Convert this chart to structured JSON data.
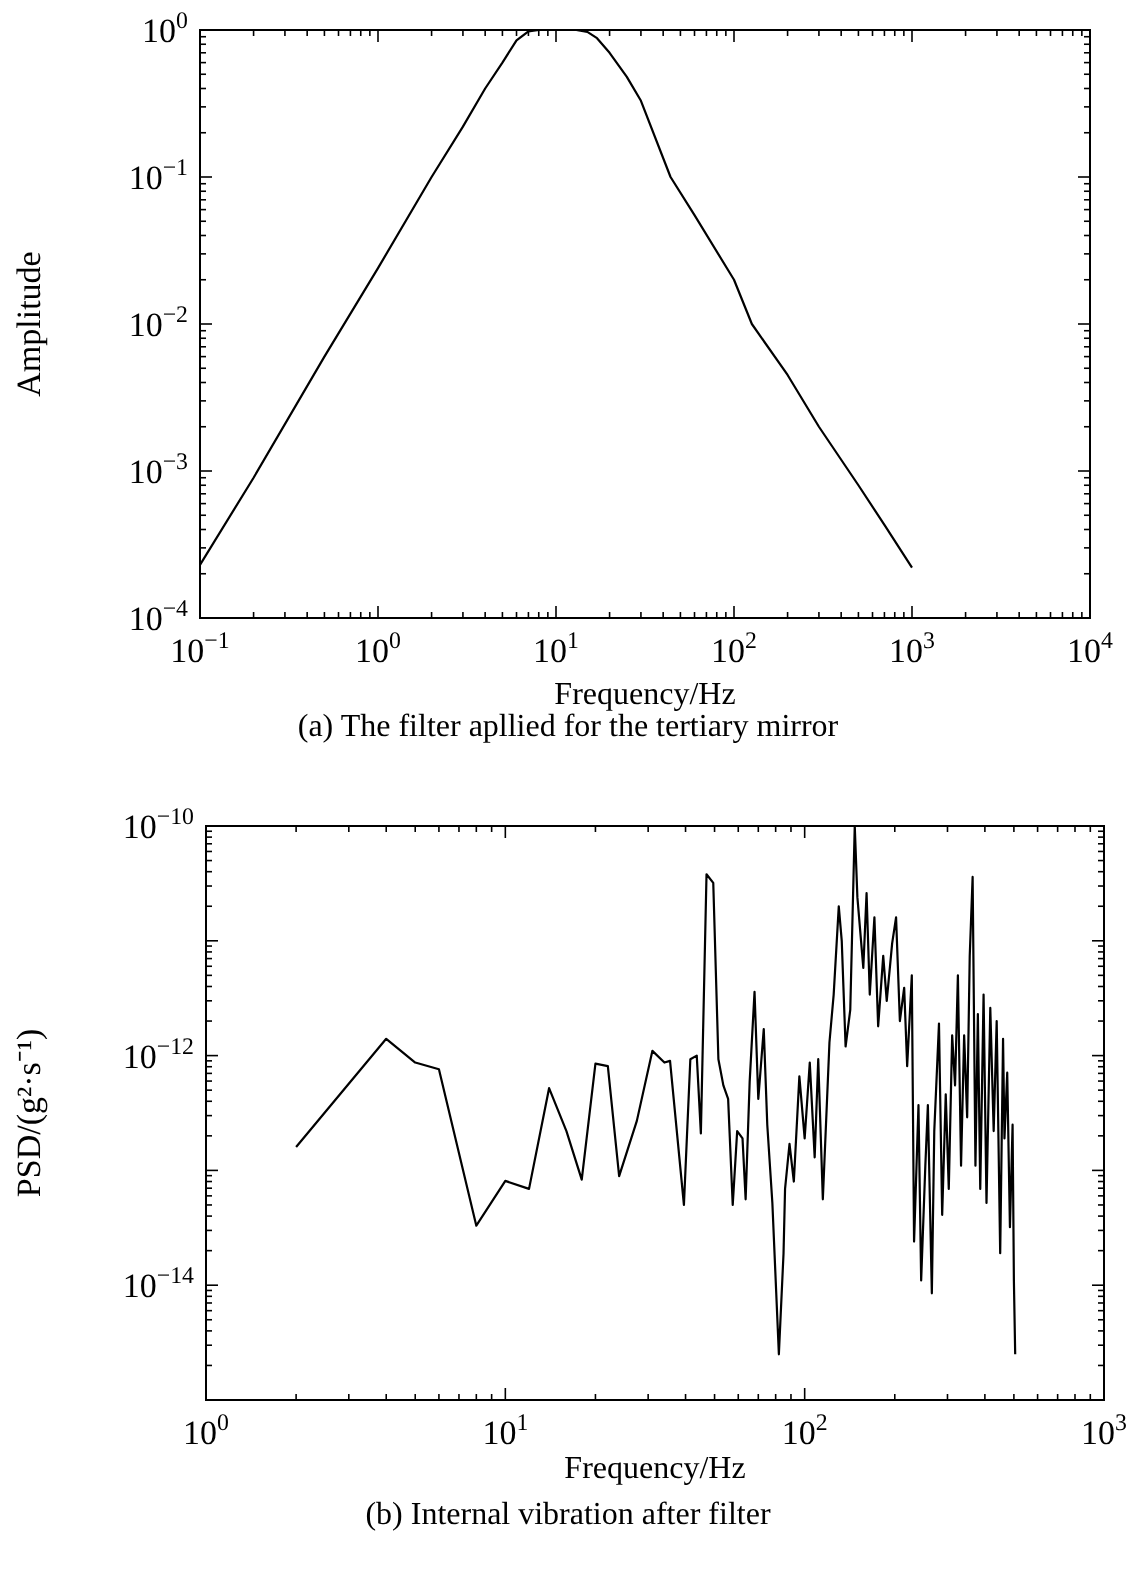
{
  "chart_data": [
    {
      "type": "line",
      "xlabel": "Frequency/Hz",
      "ylabel": "Amplitude",
      "log": "xy",
      "xlim": [
        0.1,
        10000
      ],
      "ylim": [
        0.0001,
        1
      ],
      "xticks": [
        {
          "value": 0.1,
          "label": "10$^{−1}$"
        },
        {
          "value": 1,
          "label": "10$^{0}$"
        },
        {
          "value": 10,
          "label": "10$^{1}$"
        },
        {
          "value": 100,
          "label": "10$^{2}$"
        },
        {
          "value": 1000,
          "label": "10$^{3}$"
        },
        {
          "value": 10000,
          "label": "10$^{4}$"
        }
      ],
      "yticks": [
        {
          "value": 0.0001,
          "label": "10$^{−4}$"
        },
        {
          "value": 0.001,
          "label": "10$^{−3}$"
        },
        {
          "value": 0.01,
          "label": "10$^{−2}$"
        },
        {
          "value": 0.1,
          "label": "10$^{−1}$"
        },
        {
          "value": 1,
          "label": "10$^{0}$"
        }
      ],
      "annotations": [
        "(a) The filter apllied for the tertiary mirror"
      ],
      "series": [
        {
          "color": "#000000",
          "x": [
            0.1,
            0.2,
            0.5,
            1,
            2,
            3,
            4,
            5,
            6,
            7,
            8,
            10,
            13,
            15,
            17,
            20,
            25,
            30,
            44,
            60,
            100,
            126,
            200,
            300,
            500,
            700,
            1000
          ],
          "values": [
            0.00023,
            0.0009,
            0.006,
            0.024,
            0.1,
            0.22,
            0.4,
            0.6,
            0.85,
            0.98,
            1,
            1,
            1,
            0.97,
            0.88,
            0.7,
            0.48,
            0.33,
            0.1,
            0.055,
            0.02,
            0.01,
            0.0045,
            0.002,
            0.0008,
            0.00043,
            0.00022
          ]
        }
      ]
    },
    {
      "type": "line",
      "xlabel": "Frequency/Hz",
      "ylabel": "PSD/(g²·s⁻¹)",
      "log": "xy",
      "xlim": [
        1,
        1000
      ],
      "ylim": [
        1e-15,
        1e-10
      ],
      "xticks": [
        {
          "value": 1,
          "label": "10$^{0}$"
        },
        {
          "value": 10,
          "label": "10$^{1}$"
        },
        {
          "value": 100,
          "label": "10$^{2}$"
        },
        {
          "value": 1000,
          "label": "10$^{3}$"
        }
      ],
      "yticks": [
        {
          "value": 1e-15,
          "label": null
        },
        {
          "value": 1e-14,
          "label": "10$^{−14}$"
        },
        {
          "value": 1e-13,
          "label": null
        },
        {
          "value": 1e-12,
          "label": "10$^{−12}$"
        },
        {
          "value": 1e-11,
          "label": null
        },
        {
          "value": 1e-10,
          "label": "10$^{−10}$"
        }
      ],
      "annotations": [
        "(b) Internal vibration after filter"
      ],
      "series": [
        {
          "color": "#000000",
          "x": [
            2,
            4,
            5,
            6,
            8,
            10,
            12,
            14,
            16,
            18,
            20,
            22,
            24,
            27.5,
            31,
            34,
            35.5,
            39.5,
            41.5,
            43.6,
            45,
            47,
            49.5,
            51.5,
            53.5,
            55.5,
            57.5,
            59.5,
            62,
            63.5,
            65.5,
            68,
            70,
            73,
            75,
            78,
            82,
            85,
            86,
            89,
            92,
            96,
            100,
            104,
            108,
            111,
            115,
            121,
            125,
            130,
            133,
            137,
            142,
            147,
            150,
            157,
            161,
            165,
            171,
            176,
            183,
            188,
            196,
            202,
            208,
            215,
            220,
            228,
            232,
            240,
            245,
            253,
            258,
            266,
            271,
            281,
            288,
            296,
            303,
            311,
            318,
            325,
            333,
            341,
            349,
            356,
            364,
            372,
            379,
            386,
            396,
            405,
            417,
            428,
            438,
            450,
            460,
            465,
            475,
            485,
            495,
            500,
            505
          ],
          "values": [
            1.6e-13,
            1.4e-12,
            8.7e-13,
            7.6e-13,
            3.3e-14,
            8.1e-14,
            6.9e-14,
            5.2e-13,
            2.2e-13,
            8.3e-14,
            8.5e-13,
            8.1e-13,
            8.9e-14,
            2.7e-13,
            1.1e-12,
            8.7e-13,
            9e-13,
            5e-14,
            9.3e-13,
            1e-12,
            2.1e-13,
            3.8e-11,
            3.2e-11,
            9.3e-13,
            5.5e-13,
            4.2e-13,
            5e-14,
            2.2e-13,
            1.9e-13,
            5.6e-14,
            5.9e-13,
            3.6e-12,
            4.2e-13,
            1.7e-12,
            2.5e-13,
            5.2e-14,
            2.5e-15,
            1.9e-14,
            6.9e-14,
            1.7e-13,
            8e-14,
            6.6e-13,
            1.9e-13,
            8.7e-13,
            1.3e-13,
            9.3e-13,
            5.6e-14,
            1.3e-12,
            3.4e-12,
            2e-11,
            1e-11,
            1.2e-12,
            2.5e-12,
            1e-10,
            2.4e-11,
            5.8e-12,
            2.6e-11,
            3.4e-12,
            1.6e-11,
            1.8e-12,
            7.4e-12,
            3e-12,
            9.5e-12,
            1.6e-11,
            2e-12,
            3.9e-12,
            8.1e-13,
            5e-12,
            2.4e-14,
            3.7e-13,
            1.1e-14,
            1.1e-13,
            3.7e-13,
            8.5e-15,
            2.2e-13,
            1.9e-12,
            4.1e-14,
            4.6e-13,
            6.9e-14,
            1.5e-12,
            5.5e-13,
            5e-12,
            1.1e-13,
            1.5e-12,
            2.9e-13,
            7.4e-12,
            3.6e-11,
            1.1e-13,
            2.3e-12,
            6.9e-14,
            3.4e-12,
            5.2e-14,
            2.6e-12,
            2.2e-13,
            2e-12,
            1.9e-14,
            1.4e-12,
            1.9e-13,
            7.1e-13,
            3.2e-14,
            2.5e-13,
            1.1e-14,
            2.5e-15
          ]
        }
      ]
    }
  ]
}
